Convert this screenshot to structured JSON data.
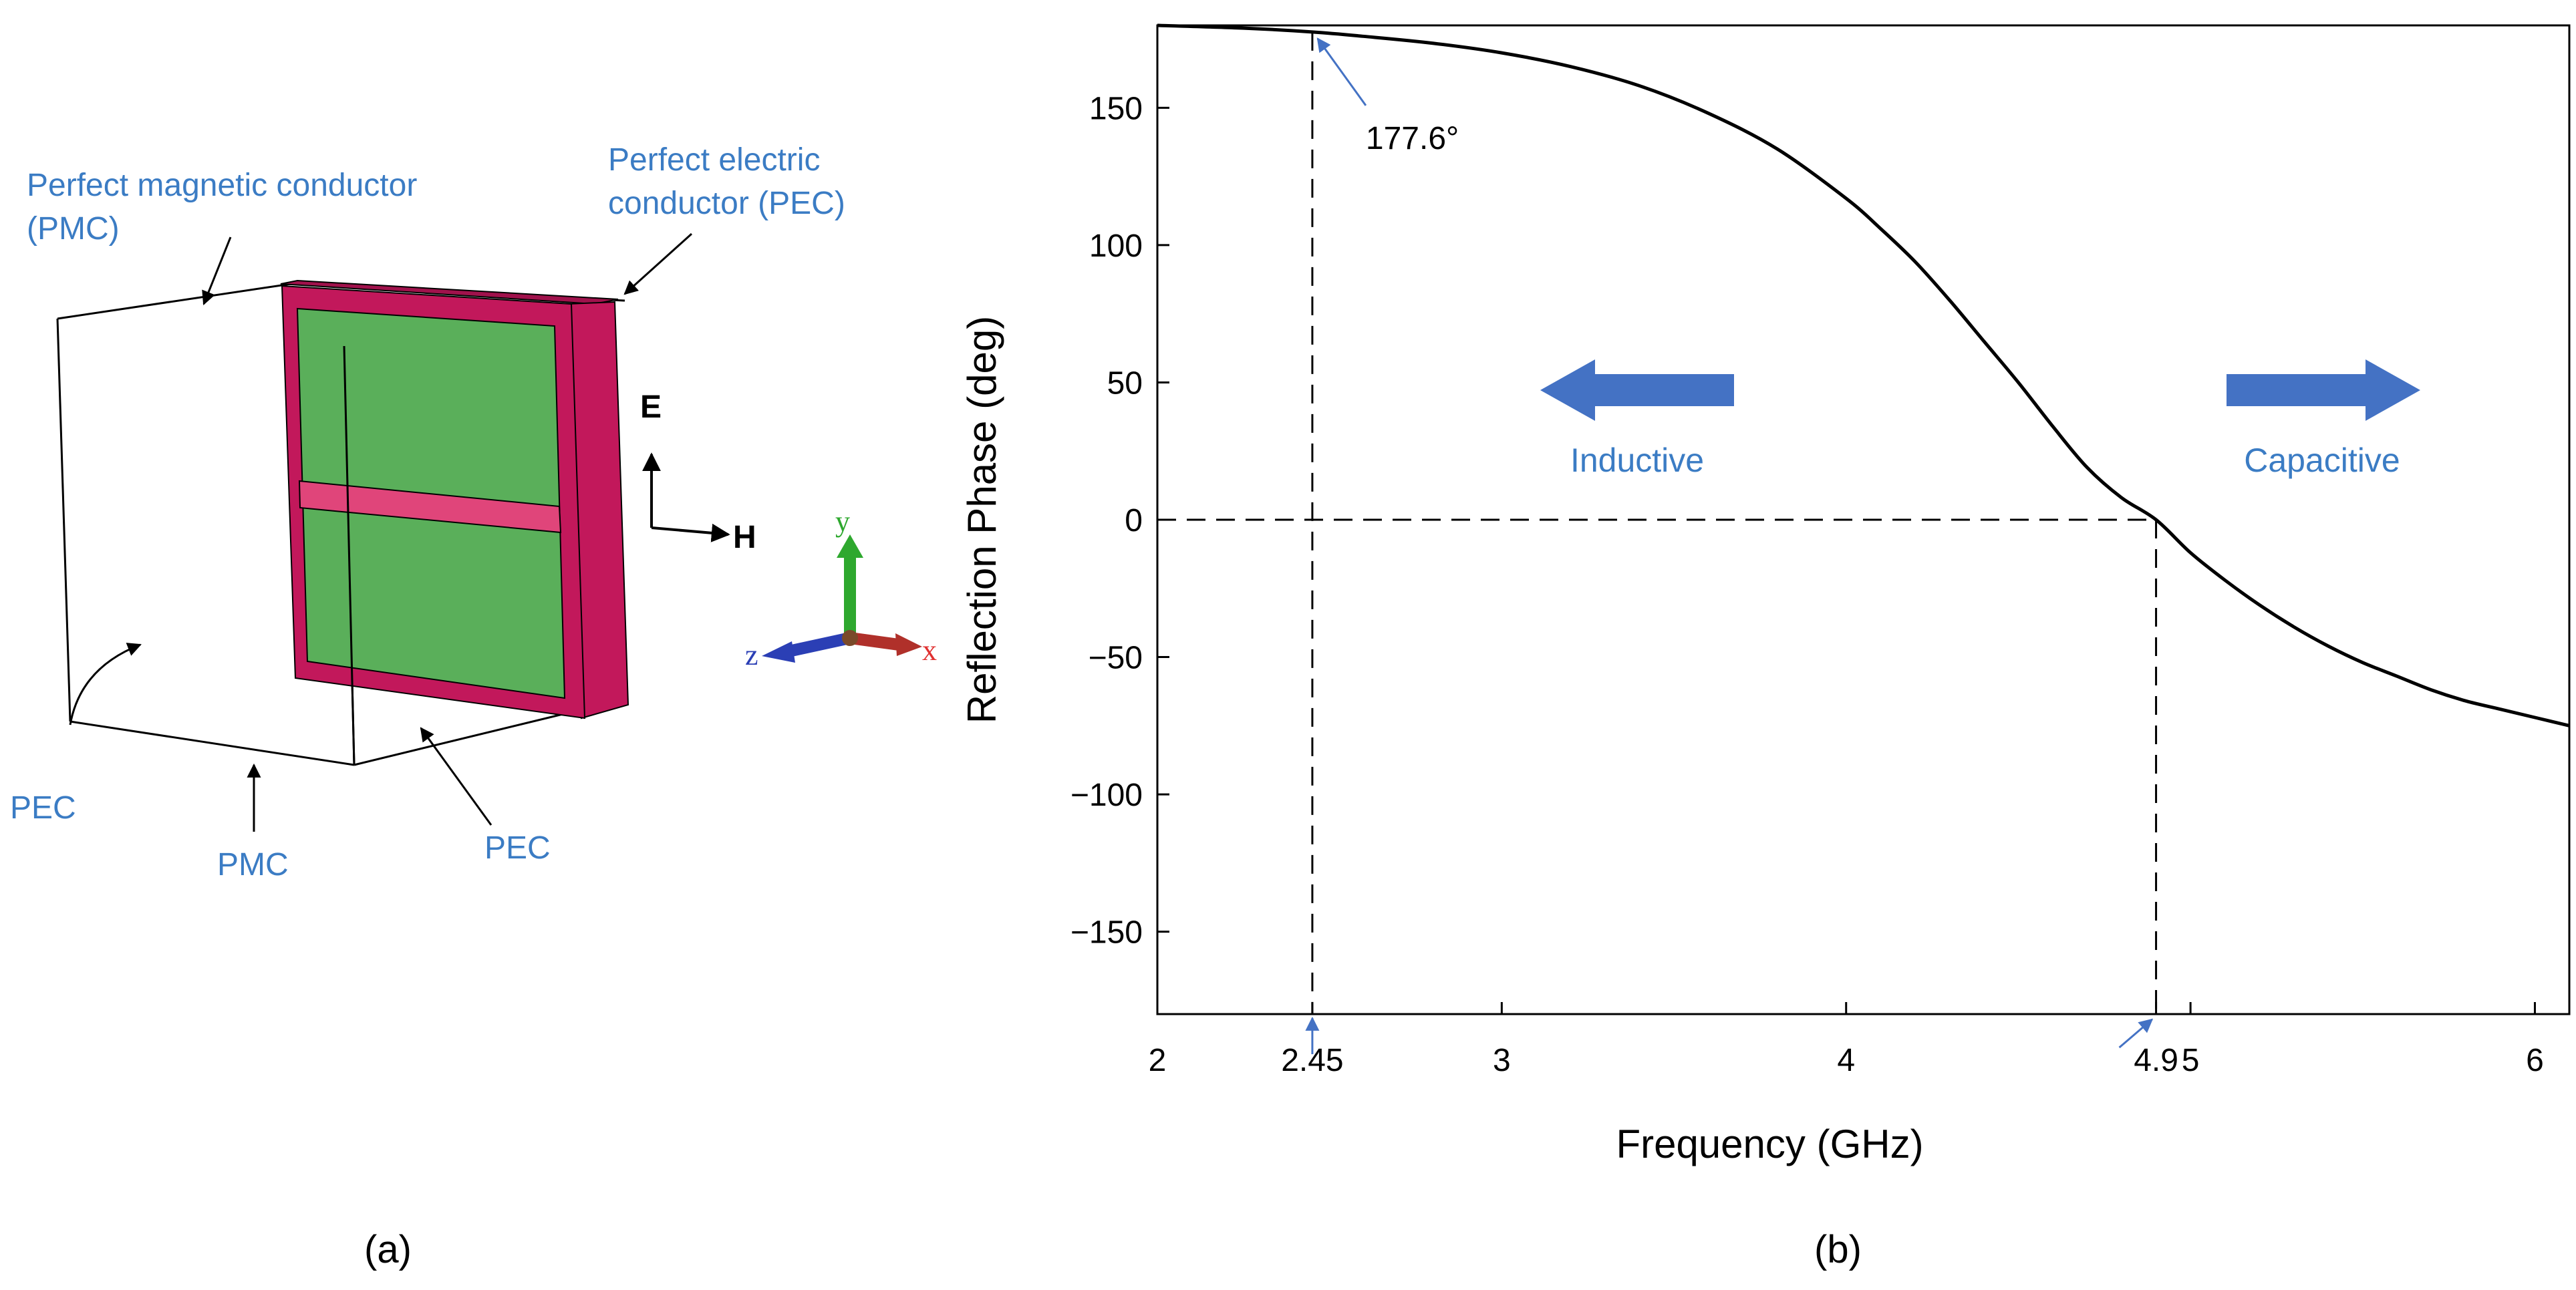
{
  "panel_a": {
    "labels": {
      "pmc_top": "Perfect magnetic conductor",
      "pmc_top_abbr": "(PMC)",
      "pec_top_line1": "Perfect electric",
      "pec_top_line2": "conductor (PEC)",
      "pec_left": "PEC",
      "pmc_bottom": "PMC",
      "pec_bottom": "PEC",
      "e_field": "E",
      "h_field": "H",
      "axis_x": "x",
      "axis_y": "y",
      "axis_z": "z"
    },
    "caption": "(a)",
    "colors": {
      "substrate": "#c2185b",
      "patch": "#5aaf5a",
      "strip": "#e0457a",
      "label": "#3b7cc4"
    }
  },
  "panel_b": {
    "caption": "(b)",
    "inductive_label": "Inductive",
    "capacitive_label": "Capacitive",
    "annotation_phase": "177.6°",
    "arrow_color": "#4472c4"
  },
  "chart_data": {
    "type": "line",
    "title": "",
    "xlabel": "Frequency (GHz)",
    "ylabel": "Reflection Phase (deg)",
    "xlim": [
      2,
      6.1
    ],
    "ylim": [
      -180,
      180
    ],
    "x_ticks": [
      2,
      2.45,
      3,
      4,
      4.9,
      5,
      6
    ],
    "x_tick_labels": [
      "2",
      "2.45",
      "3",
      "4",
      "4.9",
      "5",
      "6"
    ],
    "y_ticks": [
      150,
      100,
      50,
      0,
      -50,
      -100,
      -150
    ],
    "y_tick_labels": [
      "150",
      "100",
      "50",
      "0",
      "−50",
      "−100",
      "−150"
    ],
    "series": [
      {
        "name": "Reflection phase",
        "x": [
          2.0,
          2.25,
          2.45,
          2.6,
          2.8,
          3.0,
          3.2,
          3.4,
          3.6,
          3.8,
          4.0,
          4.1,
          4.2,
          4.3,
          4.4,
          4.5,
          4.6,
          4.7,
          4.8,
          4.9,
          5.0,
          5.1,
          5.2,
          5.3,
          5.4,
          5.5,
          5.6,
          5.7,
          5.8,
          5.9,
          6.0,
          6.1
        ],
        "y": [
          180,
          179,
          177.6,
          176,
          173.5,
          170,
          165,
          158,
          148,
          135,
          117,
          106,
          94,
          80,
          65,
          50,
          34,
          19,
          8,
          0,
          -12,
          -22,
          -31,
          -39,
          -46,
          -52,
          -57,
          -62,
          -66,
          -69,
          -72,
          -75
        ]
      }
    ],
    "reference_lines": {
      "horizontal_y": 0,
      "vertical_x": [
        2.45,
        4.9
      ]
    },
    "grid": false
  }
}
